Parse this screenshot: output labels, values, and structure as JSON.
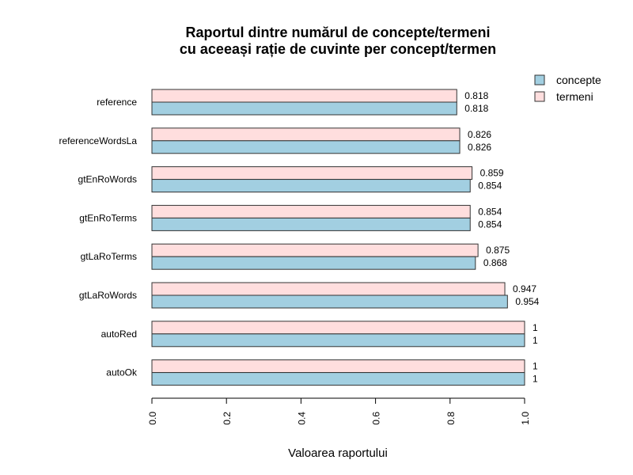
{
  "chart_data": {
    "type": "bar",
    "orientation": "horizontal",
    "title": [
      "Raportul dintre numărul de concepte/termeni",
      "cu aceeași rație de cuvinte per concept/termen"
    ],
    "xlabel": "Valoarea raportului",
    "ylabel": "",
    "xlim": [
      0,
      1.0
    ],
    "xticks": [
      "0.0",
      "0.2",
      "0.4",
      "0.6",
      "0.8",
      "1.0"
    ],
    "categories": [
      "reference",
      "referenceWordsLa",
      "gtEnRoWords",
      "gtEnRoTerms",
      "gtLaRoTerms",
      "gtLaRoWords",
      "autoRed",
      "autoOk"
    ],
    "series": [
      {
        "name": "concepte",
        "color": "#a2cfe1",
        "values": [
          0.818,
          0.826,
          0.854,
          0.854,
          0.868,
          0.954,
          1,
          1
        ],
        "labels": [
          "0.818",
          "0.826",
          "0.854",
          "0.854",
          "0.868",
          "0.954",
          "1",
          "1"
        ]
      },
      {
        "name": "termeni",
        "color": "#ffdede",
        "values": [
          0.818,
          0.826,
          0.859,
          0.854,
          0.875,
          0.947,
          1,
          1
        ],
        "labels": [
          "0.818",
          "0.826",
          "0.859",
          "0.854",
          "0.875",
          "0.947",
          "1",
          "1"
        ]
      }
    ],
    "legend": {
      "position": "top-right"
    },
    "grid": false
  }
}
